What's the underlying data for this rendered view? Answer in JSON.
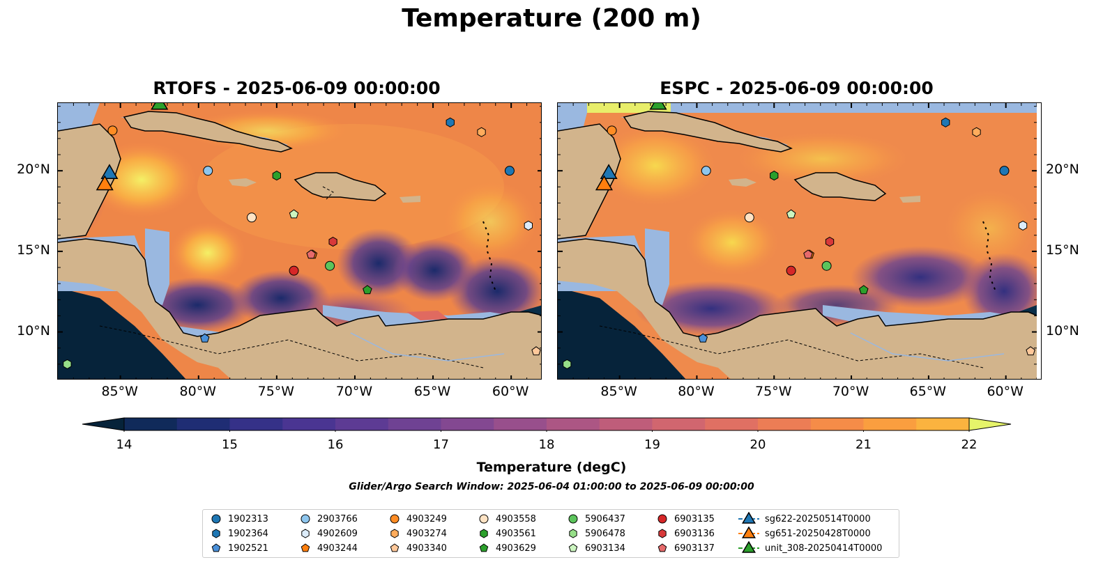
{
  "title": "Temperature (200 m)",
  "panels": [
    {
      "id": "rtofs",
      "title": "RTOFS - 2025-06-09 00:00:00"
    },
    {
      "id": "espc",
      "title": "ESPC - 2025-06-09 00:00:00"
    }
  ],
  "map_extent": {
    "lon": [
      -89,
      -58
    ],
    "lat": [
      7,
      24.2
    ]
  },
  "lon_ticks": [
    {
      "value": -85,
      "label": "85°W"
    },
    {
      "value": -80,
      "label": "80°W"
    },
    {
      "value": -75,
      "label": "75°W"
    },
    {
      "value": -70,
      "label": "70°W"
    },
    {
      "value": -65,
      "label": "65°W"
    },
    {
      "value": -60,
      "label": "60°W"
    }
  ],
  "lat_ticks": [
    {
      "value": 20,
      "label": "20°N"
    },
    {
      "value": 15,
      "label": "15°N"
    },
    {
      "value": 10,
      "label": "10°N"
    }
  ],
  "colorbar": {
    "label": "Temperature (degC)",
    "range": [
      14,
      22
    ],
    "step": 0.5,
    "ticks": [
      "14",
      "15",
      "16",
      "17",
      "18",
      "19",
      "20",
      "21",
      "22"
    ],
    "extend": "both"
  },
  "search_window": "Glider/Argo Search Window: 2025-06-04 01:00:00 to 2025-06-09 00:00:00",
  "colors": {
    "land": "#d2b48c",
    "shallow": "#9ab8e0",
    "deep": "#06233a",
    "border": "#000000"
  },
  "legend": [
    {
      "label": "1902313",
      "color": "#1f77b4",
      "marker": "circle"
    },
    {
      "label": "1902364",
      "color": "#1f77b4",
      "marker": "hexagon"
    },
    {
      "label": "1902521",
      "color": "#4a90d9",
      "marker": "pentagon"
    },
    {
      "label": "2903766",
      "color": "#8ec6ee",
      "marker": "circle"
    },
    {
      "label": "4902609",
      "color": "#dcecfa",
      "marker": "hexagon"
    },
    {
      "label": "4903244",
      "color": "#ff7f0e",
      "marker": "pentagon"
    },
    {
      "label": "4903249",
      "color": "#ff8c24",
      "marker": "circle"
    },
    {
      "label": "4903274",
      "color": "#ffac5c",
      "marker": "hexagon"
    },
    {
      "label": "4903340",
      "color": "#ffc89a",
      "marker": "pentagon"
    },
    {
      "label": "4903558",
      "color": "#ffe3c4",
      "marker": "circle"
    },
    {
      "label": "4903561",
      "color": "#2ca02c",
      "marker": "hexagon"
    },
    {
      "label": "4903629",
      "color": "#2ca02c",
      "marker": "pentagon"
    },
    {
      "label": "5906437",
      "color": "#5cc45c",
      "marker": "circle"
    },
    {
      "label": "5906478",
      "color": "#97df89",
      "marker": "hexagon"
    },
    {
      "label": "6903134",
      "color": "#ccf5c0",
      "marker": "pentagon"
    },
    {
      "label": "6903135",
      "color": "#d62728",
      "marker": "circle"
    },
    {
      "label": "6903136",
      "color": "#d8393a",
      "marker": "hexagon"
    },
    {
      "label": "6903137",
      "color": "#e66a6b",
      "marker": "pentagon"
    },
    {
      "label": "sg622-20250514T0000",
      "color": "#1f77b4",
      "marker": "triangle"
    },
    {
      "label": "sg651-20250428T0000",
      "color": "#ff7f0e",
      "marker": "triangle"
    },
    {
      "label": "unit_308-20250414T0000",
      "color": "#2ca02c",
      "marker": "triangle"
    }
  ],
  "markers": [
    {
      "id": "1902313",
      "lon": -60.1,
      "lat": 20.0
    },
    {
      "id": "1902364",
      "lon": -63.9,
      "lat": 23.0
    },
    {
      "id": "1902521",
      "lon": -79.6,
      "lat": 9.6
    },
    {
      "id": "2903766",
      "lon": -79.4,
      "lat": 20.0
    },
    {
      "id": "4902609",
      "lon": -58.9,
      "lat": 16.6
    },
    {
      "id": "4903244",
      "lon": -72.7,
      "lat": 14.8
    },
    {
      "id": "4903249",
      "lon": -85.5,
      "lat": 22.5
    },
    {
      "id": "4903274",
      "lon": -61.9,
      "lat": 22.4
    },
    {
      "id": "4903340",
      "lon": -58.4,
      "lat": 8.8
    },
    {
      "id": "4903558",
      "lon": -76.6,
      "lat": 17.1
    },
    {
      "id": "4903561",
      "lon": -75.0,
      "lat": 19.7
    },
    {
      "id": "4903629",
      "lon": -69.2,
      "lat": 12.6
    },
    {
      "id": "5906437",
      "lon": -71.6,
      "lat": 14.1
    },
    {
      "id": "5906478",
      "lon": -88.4,
      "lat": 8.0
    },
    {
      "id": "6903134",
      "lon": -73.9,
      "lat": 17.3
    },
    {
      "id": "6903135",
      "lon": -73.9,
      "lat": 13.8
    },
    {
      "id": "6903136",
      "lon": -71.4,
      "lat": 15.6
    },
    {
      "id": "6903137",
      "lon": -72.8,
      "lat": 14.8
    },
    {
      "id": "sg622-20250514T0000",
      "lon": -85.7,
      "lat": 19.8
    },
    {
      "id": "sg651-20250428T0000",
      "lon": -86.0,
      "lat": 19.1
    },
    {
      "id": "unit_308-20250414T0000",
      "lon": -82.5,
      "lat": 24.1
    }
  ]
}
